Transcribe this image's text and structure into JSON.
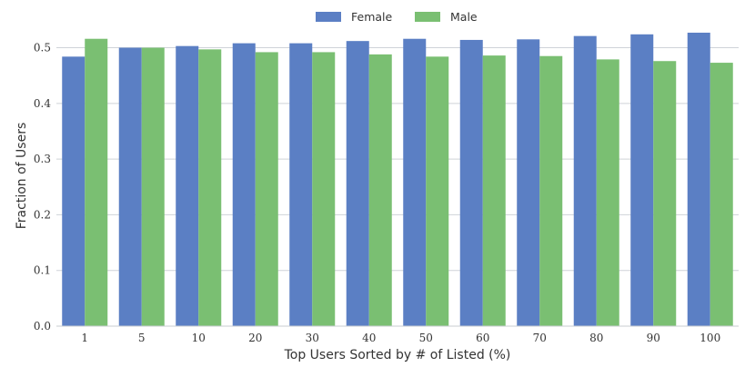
{
  "chart_data": {
    "type": "bar",
    "categories": [
      "1",
      "5",
      "10",
      "20",
      "30",
      "40",
      "50",
      "60",
      "70",
      "80",
      "90",
      "100"
    ],
    "series": [
      {
        "name": "Female",
        "color": "#5b7fc4",
        "values": [
          0.484,
          0.5,
          0.503,
          0.508,
          0.508,
          0.512,
          0.516,
          0.514,
          0.515,
          0.521,
          0.524,
          0.527
        ]
      },
      {
        "name": "Male",
        "color": "#7abf72",
        "values": [
          0.516,
          0.5,
          0.497,
          0.492,
          0.492,
          0.488,
          0.484,
          0.486,
          0.485,
          0.479,
          0.476,
          0.473
        ]
      }
    ],
    "xlabel": "Top Users Sorted by # of Listed (%)",
    "ylabel": "Fraction of Users",
    "ylim": [
      0,
      0.54
    ],
    "yticks": [
      "0.0",
      "0.1",
      "0.2",
      "0.3",
      "0.4",
      "0.5"
    ],
    "grid": true,
    "legend_position": "top-center"
  }
}
